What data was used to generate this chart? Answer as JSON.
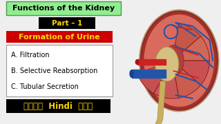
{
  "title": "Functions of the Kidney",
  "title_bg": "#90EE90",
  "title_border": "#4a9a4a",
  "part_label": "Part – 1",
  "part_bg": "#000000",
  "part_color": "#FFD700",
  "section_label": "Formation of Urine",
  "section_bg": "#CC0000",
  "section_color": "#FFD700",
  "items": [
    "A. Filtration",
    "B. Selective Reabsorption",
    "C. Tubular Secretion"
  ],
  "items_box_color": "#FFFFFF",
  "items_border_color": "#999999",
  "bottom_label": "जाने  Hindi  में",
  "bottom_bg": "#000000",
  "bottom_color": "#FFD700",
  "bg_color": "#EFEFEF",
  "kidney_outer": "#C8564A",
  "kidney_mid": "#D96B5E",
  "kidney_dark": "#A03028",
  "kidney_cortex": "#CD6B60",
  "pelvis_color": "#D4C080",
  "blue_vessel": "#2255AA",
  "red_vessel": "#CC2222",
  "ureter_color": "#C8B060"
}
